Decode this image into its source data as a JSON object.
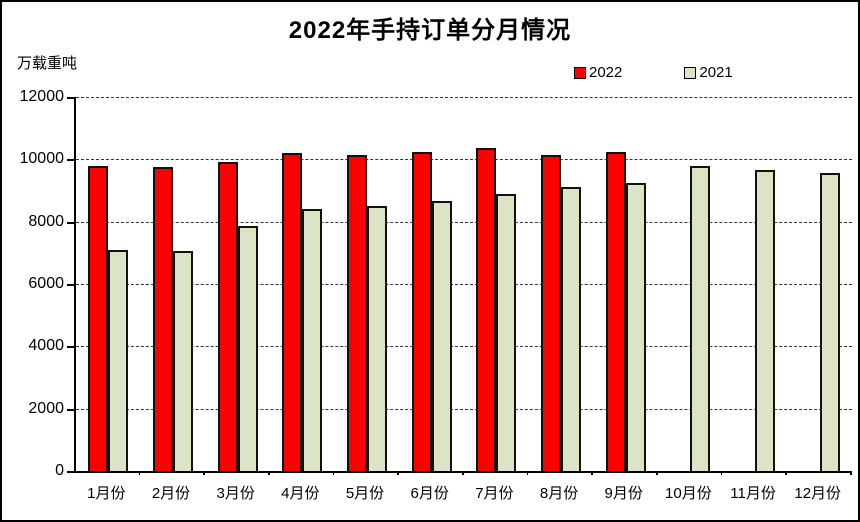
{
  "title": "2022年手持订单分月情况",
  "unit_label": "万载重吨",
  "legend": {
    "items": [
      {
        "label": "2022",
        "color": "#ff0000"
      },
      {
        "label": "2021",
        "color": "#dce4c6"
      }
    ]
  },
  "colors": {
    "bar_2022": "#ff0000",
    "bar_2021": "#dce4c6",
    "bar_border": "#111111",
    "axis": "#000000",
    "gridline": "#333333",
    "background": "#ffffff"
  },
  "chart_data": {
    "type": "bar",
    "title": "2022年手持订单分月情况",
    "xlabel": "",
    "ylabel": "万载重吨",
    "categories": [
      "1月份",
      "2月份",
      "3月份",
      "4月份",
      "5月份",
      "6月份",
      "7月份",
      "8月份",
      "9月份",
      "10月份",
      "11月份",
      "12月份"
    ],
    "series": [
      {
        "name": "2022",
        "color": "#ff0000",
        "values": [
          9800,
          9750,
          9900,
          10200,
          10150,
          10250,
          10350,
          10150,
          10250,
          null,
          null,
          null
        ]
      },
      {
        "name": "2021",
        "color": "#dce4c6",
        "values": [
          7100,
          7050,
          7850,
          8400,
          8500,
          8650,
          8900,
          9100,
          9250,
          9800,
          9650,
          9550
        ]
      }
    ],
    "ylim": [
      0,
      12000
    ],
    "yticks": [
      0,
      2000,
      4000,
      6000,
      8000,
      10000,
      12000
    ],
    "grid": "horizontal-dashed",
    "legend_position": "top-right"
  }
}
